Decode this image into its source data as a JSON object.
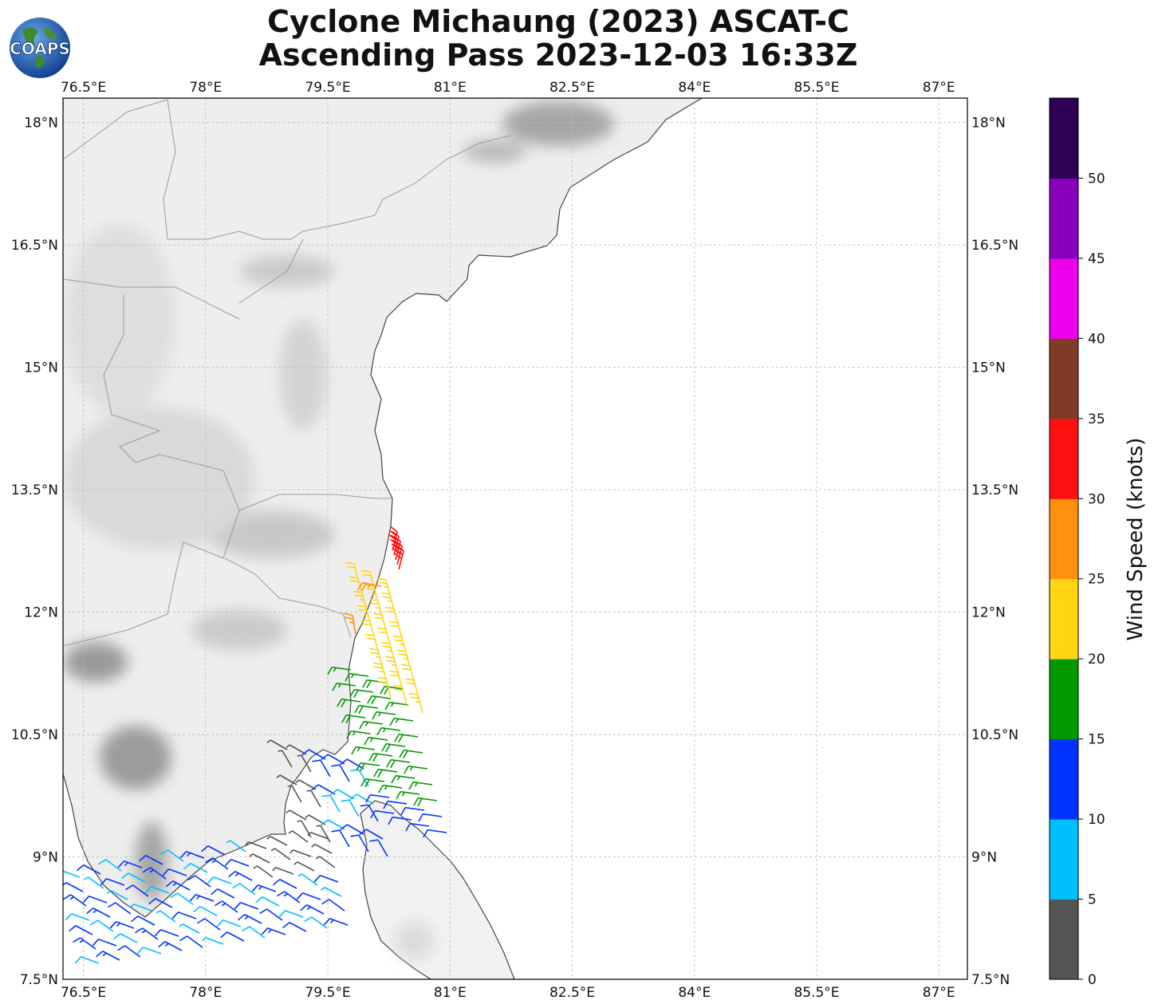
{
  "header": {
    "title_line1": "Cyclone Michaung (2023) ASCAT-C",
    "title_line2": "Ascending Pass 2023-12-03 16:33Z",
    "logo_text": "COAPS"
  },
  "map": {
    "lon_ticks": [
      "76.5°E",
      "78°E",
      "79.5°E",
      "81°E",
      "82.5°E",
      "84°E",
      "85.5°E",
      "87°E"
    ],
    "lat_ticks": [
      "18°N",
      "16.5°N",
      "15°N",
      "13.5°N",
      "12°N",
      "10.5°N",
      "9°N",
      "7.5°N"
    ],
    "lon_values": [
      76.5,
      78,
      79.5,
      81,
      82.5,
      84,
      85.5,
      87
    ],
    "lat_values": [
      18,
      16.5,
      15,
      13.5,
      12,
      10.5,
      9,
      7.5
    ],
    "extent": {
      "lon_min": 76.25,
      "lon_max": 87.35,
      "lat_min": 7.5,
      "lat_max": 18.3
    },
    "land_color": "#eeeeee",
    "ocean_color": "#ffffff",
    "grid": true
  },
  "colorbar": {
    "label": "Wind Speed (knots)",
    "ticks": [
      "0",
      "5",
      "10",
      "15",
      "20",
      "25",
      "30",
      "35",
      "40",
      "45",
      "50"
    ],
    "colors": [
      "#555555",
      "#00bfff",
      "#0033ff",
      "#009900",
      "#ffd514",
      "#ff9010",
      "#ff1010",
      "#7f3a28",
      "#ee00ee",
      "#8800bb",
      "#2d0055"
    ]
  },
  "wind_barbs": {
    "north_cluster_speed_knots": 32,
    "description_speeds": "colors by speed bin"
  }
}
